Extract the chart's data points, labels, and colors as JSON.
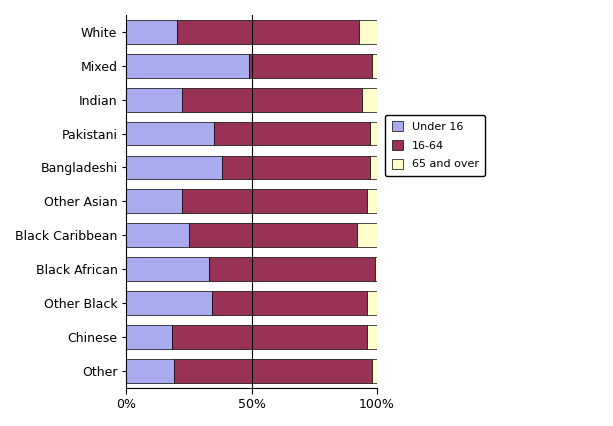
{
  "categories": [
    "White",
    "Mixed",
    "Indian",
    "Pakistani",
    "Bangladeshi",
    "Other Asian",
    "Black Caribbean",
    "Black African",
    "Other Black",
    "Chinese",
    "Other"
  ],
  "under16": [
    20,
    49,
    22,
    35,
    38,
    22,
    25,
    33,
    34,
    18,
    19
  ],
  "age1864": [
    73,
    49,
    72,
    62,
    59,
    74,
    67,
    66,
    62,
    78,
    79
  ],
  "over65": [
    7,
    2,
    6,
    3,
    3,
    4,
    8,
    1,
    4,
    4,
    2
  ],
  "color_under16": "#aaaaee",
  "color_1864": "#993355",
  "color_over65": "#ffffcc",
  "legend_labels": [
    "Under 16",
    "16-64",
    "65 and over"
  ],
  "xtick_labels": [
    "0%",
    "50%",
    "100%"
  ],
  "xtick_vals": [
    0,
    50,
    100
  ],
  "bar_height": 0.7,
  "figsize": [
    6.13,
    4.26
  ],
  "dpi": 100
}
